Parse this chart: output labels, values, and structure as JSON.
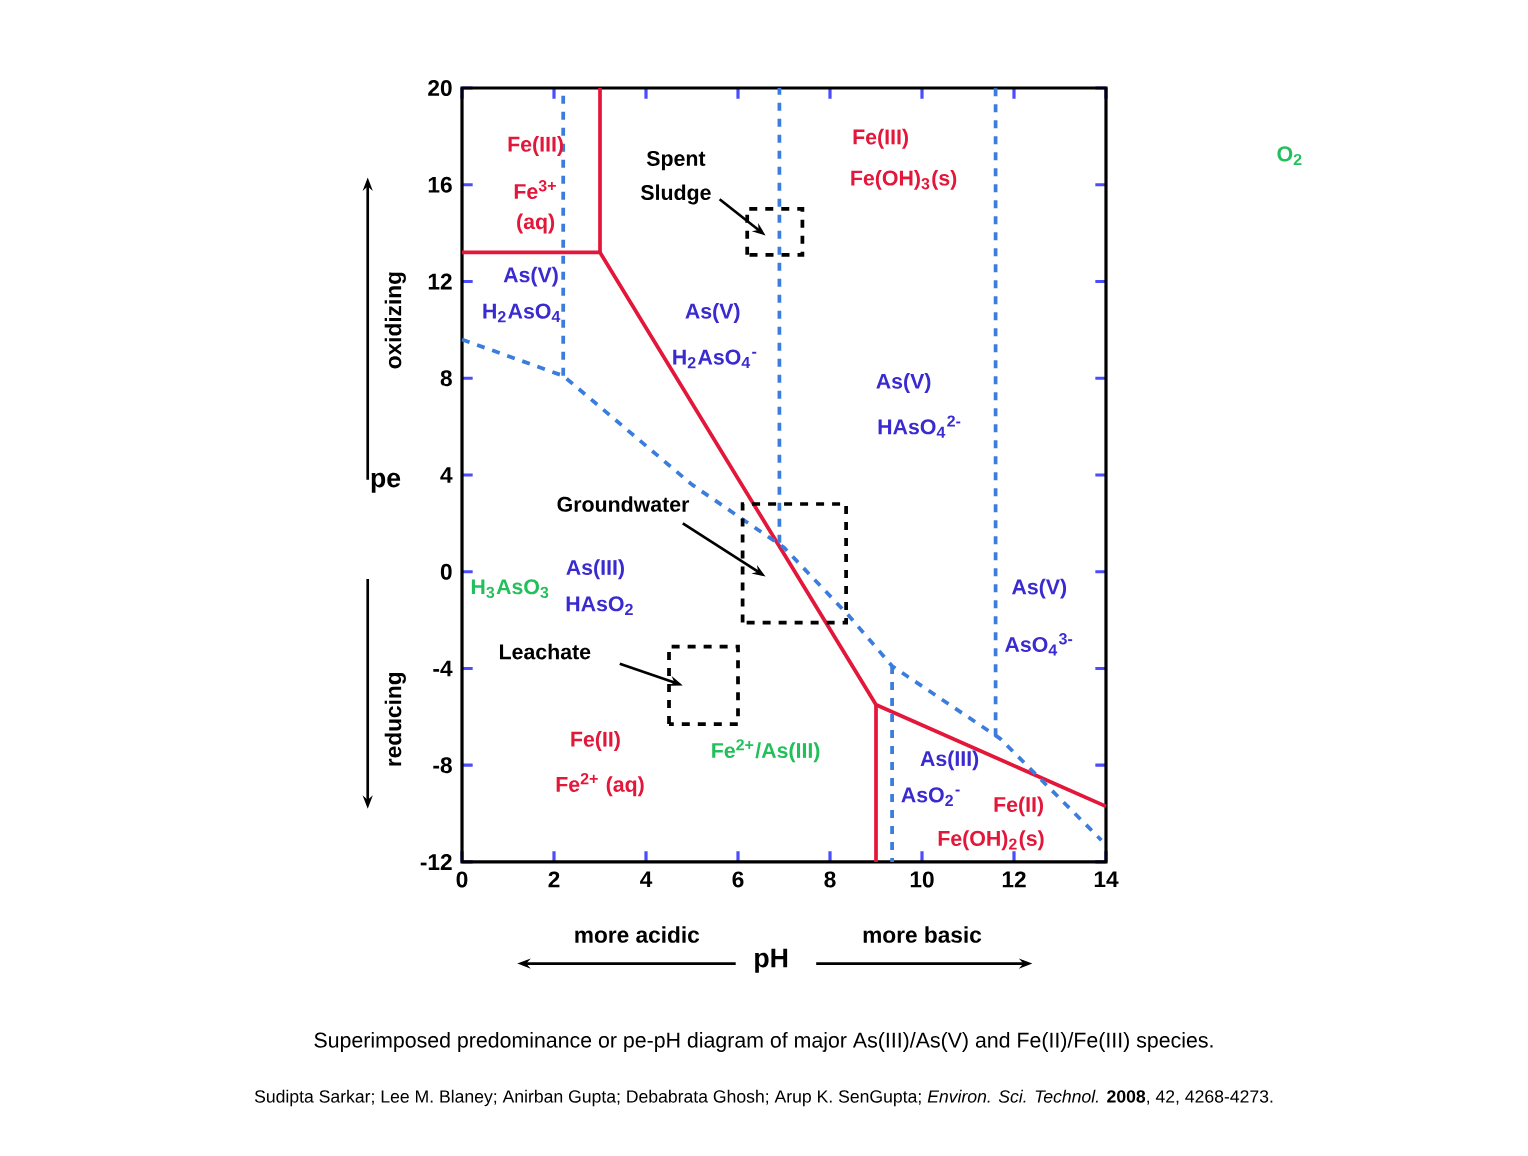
{
  "chart_data": {
    "type": "line",
    "xlabel": "pH",
    "ylabel": "pe",
    "xlim": [
      0,
      14
    ],
    "ylim": [
      -12,
      20
    ],
    "xticks": [
      0,
      2,
      4,
      6,
      8,
      10,
      12,
      14
    ],
    "yticks": [
      -12,
      -8,
      -4,
      0,
      4,
      8,
      12,
      16,
      20
    ],
    "marker": "none",
    "grid": false,
    "series": [
      {
        "color": "#e3173a",
        "line_style": "solid",
        "x": [
          0,
          3,
          9,
          14
        ],
        "values": [
          13.2,
          13.2,
          -5.5,
          -9.7
        ]
      },
      {
        "color": "#e3173a",
        "line_style": "solid",
        "x": [
          3,
          3
        ],
        "values": [
          20,
          13.2
        ]
      },
      {
        "color": "#e3173a",
        "line_style": "solid",
        "x": [
          9,
          9
        ],
        "values": [
          -5.5,
          -12
        ]
      },
      {
        "color": "#3b7ddd",
        "line_style": "dashed",
        "x": [
          0,
          2.2,
          5,
          7,
          8.4,
          9.35,
          11.7,
          13.9
        ],
        "values": [
          9.6,
          8.1,
          3.6,
          1.0,
          -1.8,
          -3.9,
          -6.9,
          -11.1
        ]
      },
      {
        "color": "#3b7ddd",
        "line_style": "dashed",
        "x": [
          2.2,
          2.2
        ],
        "values": [
          8.1,
          20
        ]
      },
      {
        "color": "#3b7ddd",
        "line_style": "dashed",
        "x": [
          6.9,
          6.9
        ],
        "values": [
          1.2,
          20
        ]
      },
      {
        "color": "#3b7ddd",
        "line_style": "dashed",
        "x": [
          11.6,
          11.6
        ],
        "values": [
          -6.8,
          20
        ]
      },
      {
        "color": "#3b7ddd",
        "line_style": "dashed",
        "x": [
          9.35,
          9.35
        ],
        "values": [
          -3.9,
          -12
        ]
      }
    ],
    "annotations": [
      "Fe(III)",
      "Fe$^{3+}$",
      "(aq)",
      "As(V)",
      "H$_{2}$AsO$_{4}$",
      "Spent",
      "Sludge",
      "Fe(III)",
      "Fe(OH)$_{3}$(s)",
      "As(V)",
      "H$_{2}$AsO$_{4}$$^{-}$",
      "As(V)",
      "HAsO$_{4}$$^{2-}$",
      "Groundwater",
      "As(III)",
      "HAsO$_{2}$",
      "Leachate",
      "Fe(II)",
      "Fe$^{2+}$ (aq)",
      "As(V)",
      "AsO$_{4}$$^{3-}$",
      "As(III)",
      "AsO$_{2}$$^{-}$",
      "Fe(II)",
      "Fe(OH)$_{2}$(s)",
      "H$_{3}$AsO$_{3}$",
      "Fe$^{2+}$/As(III)",
      "O$_{2}$",
      "oxidizing",
      "reducing",
      "more acidic",
      "more basic",
      "Superimposed predominance or pe-pH diagram of major As(III)/As(V) and Fe(II)/Fe(III) species.",
      "Sudipta Sarkar; Lee M. Blaney; Anirban Gupta; Debabrata Ghosh; Arup K. SenGupta; *Environ. Sci. Technol.* **2008**, 42, 4268-4273."
    ]
  }
}
